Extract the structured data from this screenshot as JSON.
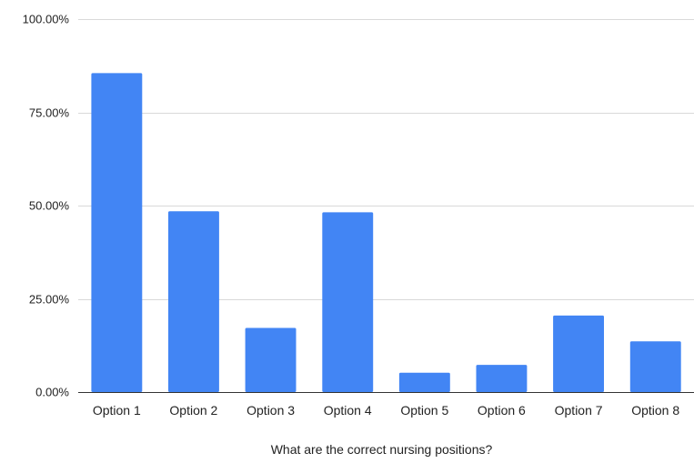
{
  "chart_data": {
    "type": "bar",
    "title": "",
    "xlabel": "What are the correct nursing positions?",
    "ylabel": "",
    "categories": [
      "Option 1",
      "Option 2",
      "Option 3",
      "Option 4",
      "Option 5",
      "Option 6",
      "Option 7",
      "Option 8"
    ],
    "values": [
      85.5,
      48.5,
      17.2,
      48.2,
      5.2,
      7.3,
      20.5,
      13.6
    ],
    "ylim": [
      0,
      100
    ],
    "yticks": [
      0,
      25,
      50,
      75,
      100
    ],
    "ytick_labels": [
      "0.00%",
      "25.00%",
      "50.00%",
      "75.00%",
      "100.00%"
    ],
    "grid": true,
    "legend": "none",
    "colors": {
      "bar": "#4285f4",
      "grid": "#d9d9d9",
      "axis": "#333333"
    }
  }
}
